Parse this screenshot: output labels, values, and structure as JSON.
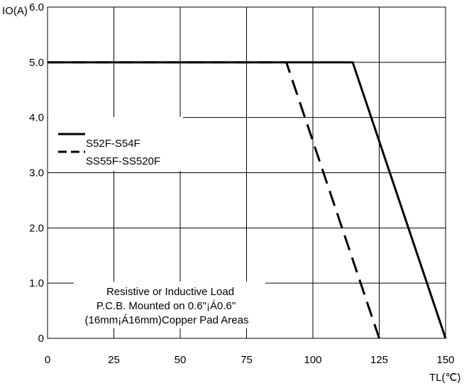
{
  "chart_data": {
    "type": "line",
    "xlabel": "TL(℃)",
    "ylabel": "IO(A)",
    "xlim": [
      0,
      150
    ],
    "ylim": [
      0,
      6.0
    ],
    "x_ticks": [
      "0",
      "25",
      "50",
      "75",
      "100",
      "125",
      "150"
    ],
    "y_ticks": [
      "0",
      "1.0",
      "2.0",
      "3.0",
      "4.0",
      "5.0",
      "6.0"
    ],
    "grid": true,
    "series": [
      {
        "name": "S52F-S54F",
        "style": "solid",
        "x": [
          0,
          115,
          150
        ],
        "y": [
          5.0,
          5.0,
          0
        ]
      },
      {
        "name": "SS55F-SS520F",
        "style": "dashed",
        "x": [
          0,
          90,
          125
        ],
        "y": [
          5.0,
          5.0,
          0
        ]
      }
    ],
    "annotation": [
      "Resistive or Inductive Load",
      "P.C.B. Mounted on 0.6\"¡Á0.6\"",
      "(16mm¡Á16mm)Copper Pad Areas"
    ],
    "legend_position": "left-middle"
  }
}
